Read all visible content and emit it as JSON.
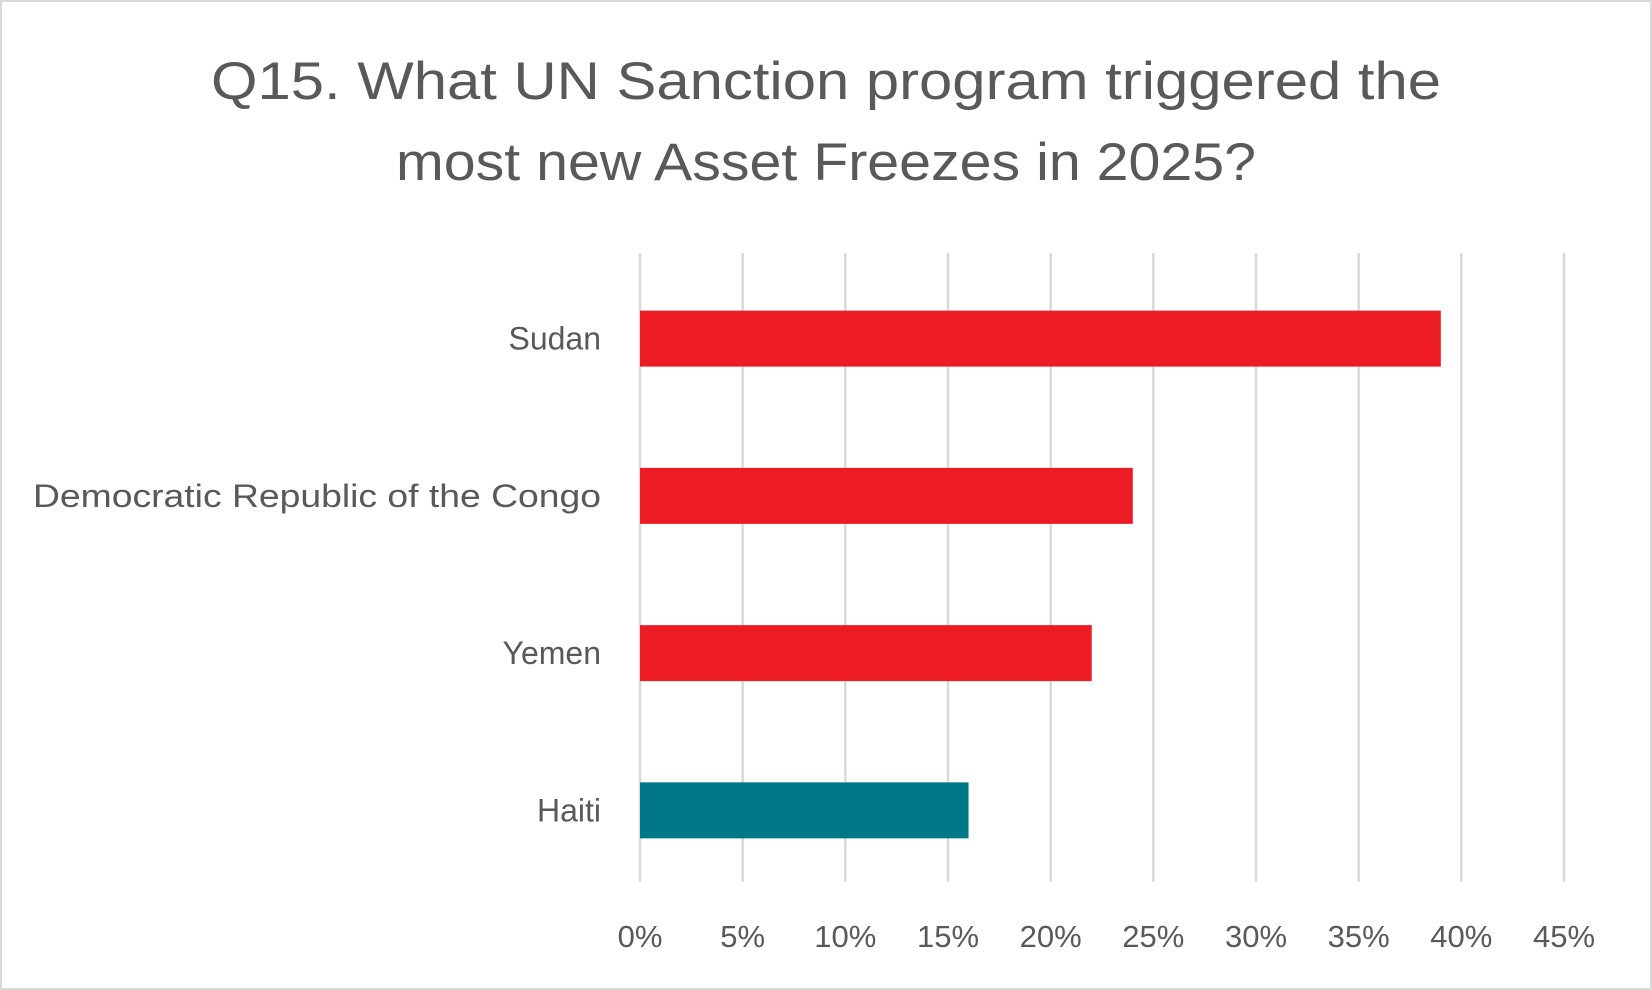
{
  "chart_data": {
    "type": "bar",
    "orientation": "horizontal",
    "title_lines": [
      "Q15. What UN Sanction program triggered the",
      "most new Asset Freezes in 2025?"
    ],
    "categories": [
      "Sudan",
      "Democratic Republic of the Congo",
      "Yemen",
      "Haiti"
    ],
    "values": [
      39,
      24,
      22,
      16
    ],
    "value_unit": "%",
    "bar_colors": [
      "#ED1C24",
      "#ED1C24",
      "#ED1C24",
      "#00788A"
    ],
    "xlim": [
      0,
      45
    ],
    "x_ticks": [
      "0%",
      "5%",
      "10%",
      "15%",
      "20%",
      "25%",
      "30%",
      "35%",
      "40%",
      "45%"
    ],
    "xlabel": "",
    "ylabel": "",
    "grid": "vertical",
    "legend": "none"
  }
}
